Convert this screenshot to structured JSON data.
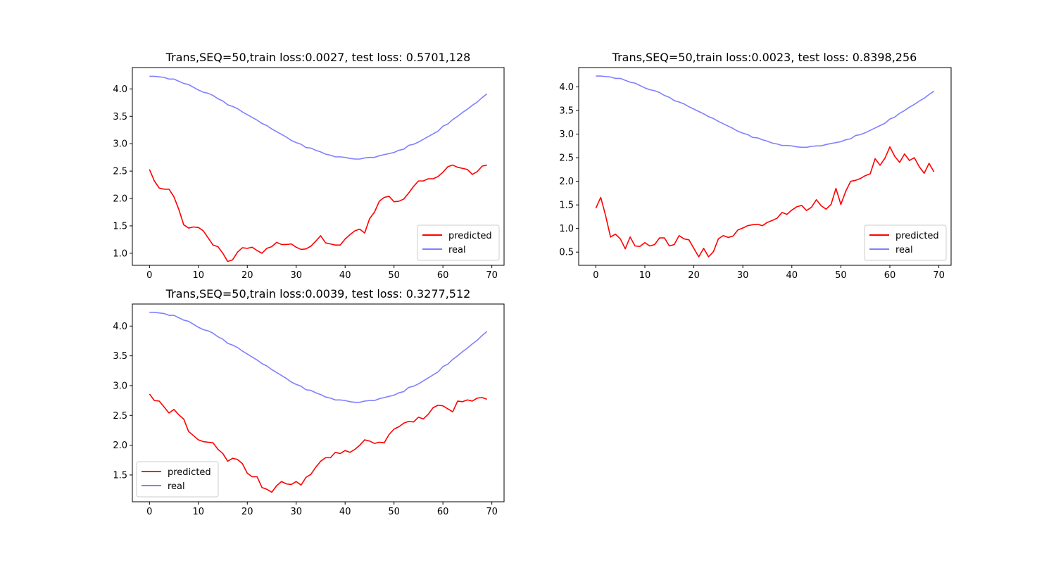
{
  "colors": {
    "predicted": "#ff0000",
    "real": "#8080ff",
    "axis": "#000000",
    "background": "#ffffff"
  },
  "chart_data": [
    {
      "type": "line",
      "title": "Trans,SEQ=50,train loss:0.0027, test loss: 0.5701,128",
      "xlabel": "",
      "ylabel": "",
      "xlim": [
        -3.5,
        72.5
      ],
      "ylim": [
        0.78,
        4.39
      ],
      "xticks": [
        0,
        10,
        20,
        30,
        40,
        50,
        60,
        70
      ],
      "yticks": [
        1.0,
        1.5,
        2.0,
        2.5,
        3.0,
        3.5,
        4.0
      ],
      "ytick_labels": [
        "1.0",
        "1.5",
        "2.0",
        "2.5",
        "3.0",
        "3.5",
        "4.0"
      ],
      "grid": false,
      "legend_position": "lower-right",
      "series": [
        {
          "name": "predicted",
          "color": "#ff0000",
          "values": [
            2.53,
            2.32,
            2.19,
            2.17,
            2.17,
            2.03,
            1.8,
            1.52,
            1.46,
            1.48,
            1.47,
            1.41,
            1.28,
            1.15,
            1.12,
            1.0,
            0.85,
            0.88,
            1.02,
            1.1,
            1.09,
            1.11,
            1.05,
            1.0,
            1.09,
            1.12,
            1.2,
            1.16,
            1.16,
            1.17,
            1.11,
            1.07,
            1.08,
            1.13,
            1.22,
            1.32,
            1.19,
            1.17,
            1.15,
            1.15,
            1.26,
            1.34,
            1.41,
            1.44,
            1.37,
            1.63,
            1.75,
            1.95,
            2.02,
            2.04,
            1.94,
            1.95,
            1.99,
            2.1,
            2.22,
            2.32,
            2.32,
            2.36,
            2.36,
            2.4,
            2.48,
            2.58,
            2.61,
            2.57,
            2.55,
            2.53,
            2.44,
            2.49,
            2.59,
            2.61
          ]
        },
        {
          "name": "real",
          "color": "#8080ff",
          "values": [
            4.23,
            4.23,
            4.22,
            4.21,
            4.18,
            4.18,
            4.14,
            4.1,
            4.08,
            4.03,
            3.98,
            3.94,
            3.92,
            3.88,
            3.82,
            3.78,
            3.71,
            3.68,
            3.64,
            3.58,
            3.53,
            3.48,
            3.43,
            3.37,
            3.33,
            3.27,
            3.22,
            3.17,
            3.12,
            3.06,
            3.02,
            2.99,
            2.93,
            2.92,
            2.88,
            2.85,
            2.81,
            2.79,
            2.76,
            2.76,
            2.75,
            2.73,
            2.72,
            2.72,
            2.74,
            2.75,
            2.75,
            2.78,
            2.8,
            2.82,
            2.84,
            2.88,
            2.9,
            2.97,
            2.99,
            3.03,
            3.08,
            3.13,
            3.18,
            3.23,
            3.32,
            3.36,
            3.44,
            3.5,
            3.57,
            3.63,
            3.7,
            3.76,
            3.84,
            3.91
          ]
        }
      ]
    },
    {
      "type": "line",
      "title": "Trans,SEQ=50,train loss:0.0023, test loss: 0.8398,256",
      "xlabel": "",
      "ylabel": "",
      "xlim": [
        -3.5,
        72.5
      ],
      "ylim": [
        0.22,
        4.41
      ],
      "xticks": [
        0,
        10,
        20,
        30,
        40,
        50,
        60,
        70
      ],
      "yticks": [
        0.5,
        1.0,
        1.5,
        2.0,
        2.5,
        3.0,
        3.5,
        4.0
      ],
      "ytick_labels": [
        "0.5",
        "1.0",
        "1.5",
        "2.0",
        "2.5",
        "3.0",
        "3.5",
        "4.0"
      ],
      "grid": false,
      "legend_position": "lower-right",
      "series": [
        {
          "name": "predicted",
          "color": "#ff0000",
          "values": [
            1.43,
            1.66,
            1.27,
            0.82,
            0.88,
            0.78,
            0.57,
            0.82,
            0.63,
            0.62,
            0.7,
            0.63,
            0.66,
            0.8,
            0.8,
            0.63,
            0.66,
            0.85,
            0.78,
            0.76,
            0.58,
            0.4,
            0.58,
            0.4,
            0.51,
            0.78,
            0.85,
            0.81,
            0.84,
            0.97,
            1.01,
            1.06,
            1.08,
            1.09,
            1.06,
            1.13,
            1.17,
            1.22,
            1.34,
            1.3,
            1.39,
            1.46,
            1.49,
            1.38,
            1.45,
            1.61,
            1.48,
            1.41,
            1.51,
            1.85,
            1.51,
            1.79,
            2.0,
            2.02,
            2.06,
            2.12,
            2.16,
            2.48,
            2.34,
            2.49,
            2.73,
            2.53,
            2.4,
            2.58,
            2.44,
            2.5,
            2.31,
            2.17,
            2.38,
            2.2
          ]
        },
        {
          "name": "real",
          "color": "#8080ff",
          "values": [
            4.23,
            4.23,
            4.22,
            4.21,
            4.18,
            4.18,
            4.14,
            4.1,
            4.08,
            4.03,
            3.98,
            3.94,
            3.92,
            3.88,
            3.82,
            3.78,
            3.71,
            3.68,
            3.64,
            3.58,
            3.53,
            3.48,
            3.43,
            3.37,
            3.33,
            3.27,
            3.22,
            3.17,
            3.12,
            3.06,
            3.02,
            2.99,
            2.93,
            2.92,
            2.88,
            2.85,
            2.81,
            2.79,
            2.76,
            2.76,
            2.75,
            2.73,
            2.72,
            2.72,
            2.74,
            2.75,
            2.75,
            2.78,
            2.8,
            2.82,
            2.84,
            2.88,
            2.9,
            2.97,
            2.99,
            3.03,
            3.08,
            3.13,
            3.18,
            3.23,
            3.32,
            3.36,
            3.44,
            3.5,
            3.57,
            3.63,
            3.7,
            3.76,
            3.84,
            3.91
          ]
        }
      ]
    },
    {
      "type": "line",
      "title": "Trans,SEQ=50,train loss:0.0039, test loss: 0.3277,512",
      "xlabel": "",
      "ylabel": "",
      "xlim": [
        -3.5,
        72.5
      ],
      "ylim": [
        1.05,
        4.37
      ],
      "xticks": [
        0,
        10,
        20,
        30,
        40,
        50,
        60,
        70
      ],
      "yticks": [
        1.5,
        2.0,
        2.5,
        3.0,
        3.5,
        4.0
      ],
      "ytick_labels": [
        "1.5",
        "2.0",
        "2.5",
        "3.0",
        "3.5",
        "4.0"
      ],
      "grid": false,
      "legend_position": "lower-left",
      "series": [
        {
          "name": "predicted",
          "color": "#ff0000",
          "values": [
            2.86,
            2.75,
            2.74,
            2.64,
            2.54,
            2.6,
            2.51,
            2.44,
            2.23,
            2.16,
            2.09,
            2.06,
            2.05,
            2.04,
            1.93,
            1.86,
            1.73,
            1.78,
            1.76,
            1.69,
            1.53,
            1.47,
            1.47,
            1.29,
            1.26,
            1.21,
            1.32,
            1.39,
            1.35,
            1.34,
            1.39,
            1.33,
            1.46,
            1.51,
            1.63,
            1.73,
            1.79,
            1.79,
            1.88,
            1.86,
            1.91,
            1.88,
            1.93,
            2.0,
            2.09,
            2.07,
            2.03,
            2.05,
            2.04,
            2.18,
            2.27,
            2.31,
            2.37,
            2.4,
            2.39,
            2.47,
            2.44,
            2.52,
            2.63,
            2.67,
            2.66,
            2.61,
            2.56,
            2.74,
            2.73,
            2.76,
            2.74,
            2.79,
            2.8,
            2.77
          ]
        },
        {
          "name": "real",
          "color": "#8080ff",
          "values": [
            4.23,
            4.23,
            4.22,
            4.21,
            4.18,
            4.18,
            4.14,
            4.1,
            4.08,
            4.03,
            3.98,
            3.94,
            3.92,
            3.88,
            3.82,
            3.78,
            3.71,
            3.68,
            3.64,
            3.58,
            3.53,
            3.48,
            3.43,
            3.37,
            3.33,
            3.27,
            3.22,
            3.17,
            3.12,
            3.06,
            3.02,
            2.99,
            2.93,
            2.92,
            2.88,
            2.85,
            2.81,
            2.79,
            2.76,
            2.76,
            2.75,
            2.73,
            2.72,
            2.72,
            2.74,
            2.75,
            2.75,
            2.78,
            2.8,
            2.82,
            2.84,
            2.88,
            2.9,
            2.97,
            2.99,
            3.03,
            3.08,
            3.13,
            3.18,
            3.23,
            3.32,
            3.36,
            3.44,
            3.5,
            3.57,
            3.63,
            3.7,
            3.76,
            3.84,
            3.91
          ]
        }
      ]
    }
  ]
}
